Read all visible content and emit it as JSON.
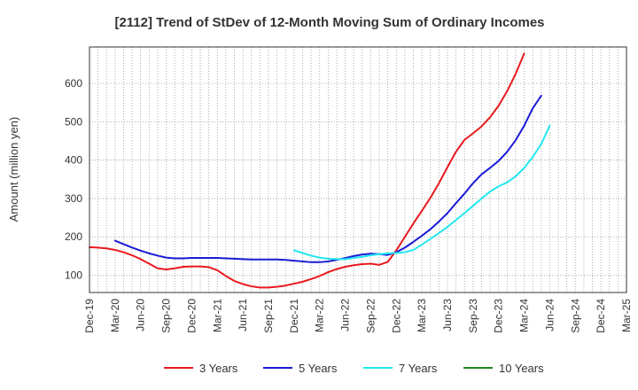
{
  "chart_data": {
    "type": "line",
    "title": "[2112]  Trend of StDev of 12-Month Moving Sum of Ordinary Incomes",
    "ylabel": "Amount (million yen)",
    "xlabel": "",
    "ylim": [
      55,
      695
    ],
    "yticks": [
      100,
      200,
      300,
      400,
      500,
      600
    ],
    "x_tick_labels": [
      "Dec-19",
      "Mar-20",
      "Jun-20",
      "Sep-20",
      "Dec-20",
      "Mar-21",
      "Jun-21",
      "Sep-21",
      "Dec-21",
      "Mar-22",
      "Jun-22",
      "Sep-22",
      "Dec-22",
      "Mar-23",
      "Jun-23",
      "Sep-23",
      "Dec-23",
      "Mar-24",
      "Jun-24",
      "Sep-24",
      "Dec-24",
      "Mar-25"
    ],
    "grid": true,
    "legend_position": "bottom",
    "series": [
      {
        "name": "3 Years",
        "color": "#e8191e",
        "start_index": 0,
        "values": [
          173,
          172,
          170,
          166,
          160,
          152,
          142,
          130,
          118,
          115,
          118,
          122,
          123,
          123,
          121,
          113,
          98,
          85,
          77,
          71,
          68,
          68,
          70,
          73,
          78,
          83,
          90,
          98,
          108,
          116,
          122,
          126,
          129,
          130,
          127,
          135,
          165,
          200,
          235,
          268,
          302,
          340,
          382,
          422,
          453,
          470,
          488,
          512,
          542,
          580,
          625,
          678
        ]
      },
      {
        "name": "5 Years",
        "color": "#1a1ad6",
        "start_index": 3,
        "values": [
          190,
          181,
          172,
          164,
          157,
          151,
          146,
          144,
          144,
          145,
          145,
          145,
          145,
          144,
          143,
          142,
          141,
          141,
          141,
          141,
          140,
          138,
          136,
          134,
          134,
          136,
          140,
          145,
          150,
          154,
          156,
          155,
          153,
          160,
          172,
          187,
          203,
          220,
          240,
          262,
          288,
          313,
          340,
          363,
          380,
          398,
          422,
          452,
          490,
          535,
          568
        ]
      },
      {
        "name": "7 Years",
        "color": "#22e8f0",
        "start_index": 24,
        "values": [
          165,
          158,
          151,
          146,
          143,
          142,
          142,
          145,
          148,
          152,
          155,
          157,
          158,
          160,
          166,
          180,
          195,
          210,
          226,
          244,
          262,
          281,
          300,
          318,
          332,
          342,
          358,
          380,
          408,
          442,
          490
        ]
      },
      {
        "name": "10 Years",
        "color": "#1e8a1e",
        "start_index": 0,
        "values": []
      }
    ]
  }
}
